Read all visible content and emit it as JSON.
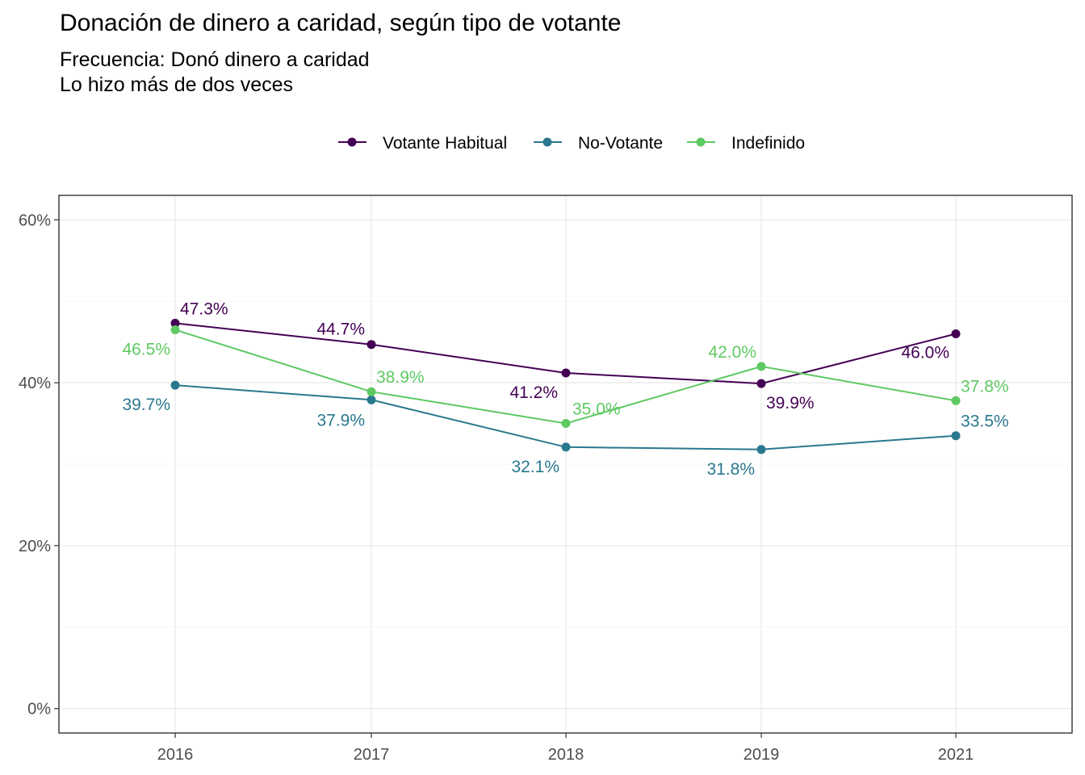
{
  "chart_data": {
    "type": "line",
    "title": "Donación de dinero a caridad, según tipo de votante",
    "subtitle_lines": [
      "Frecuencia: Donó dinero a caridad",
      "Lo hizo más de dos veces"
    ],
    "xlabel": "",
    "ylabel": "",
    "categories": [
      "2016",
      "2017",
      "2018",
      "2019",
      "2021"
    ],
    "y_ticks": [
      0,
      20,
      40,
      60
    ],
    "y_tick_labels": [
      "0%",
      "20%",
      "40%",
      "60%"
    ],
    "ylim": [
      -3,
      63
    ],
    "grid": true,
    "legend_position": "top",
    "series": [
      {
        "name": "Votante Habitual",
        "color": "#440154",
        "values": [
          47.3,
          44.7,
          41.2,
          39.9,
          46.0
        ],
        "labels": [
          "47.3%",
          "44.7%",
          "41.2%",
          "39.9%",
          "46.0%"
        ]
      },
      {
        "name": "No-Votante",
        "color": "#2A788E",
        "values": [
          39.7,
          37.9,
          32.1,
          31.8,
          33.5
        ],
        "labels": [
          "39.7%",
          "37.9%",
          "32.1%",
          "31.8%",
          "33.5%"
        ]
      },
      {
        "name": "Indefinido",
        "color": "#5EC962",
        "values": [
          46.5,
          38.9,
          35.0,
          42.0,
          37.8
        ],
        "labels": [
          "46.5%",
          "38.9%",
          "35.0%",
          "42.0%",
          "37.8%"
        ]
      }
    ]
  }
}
